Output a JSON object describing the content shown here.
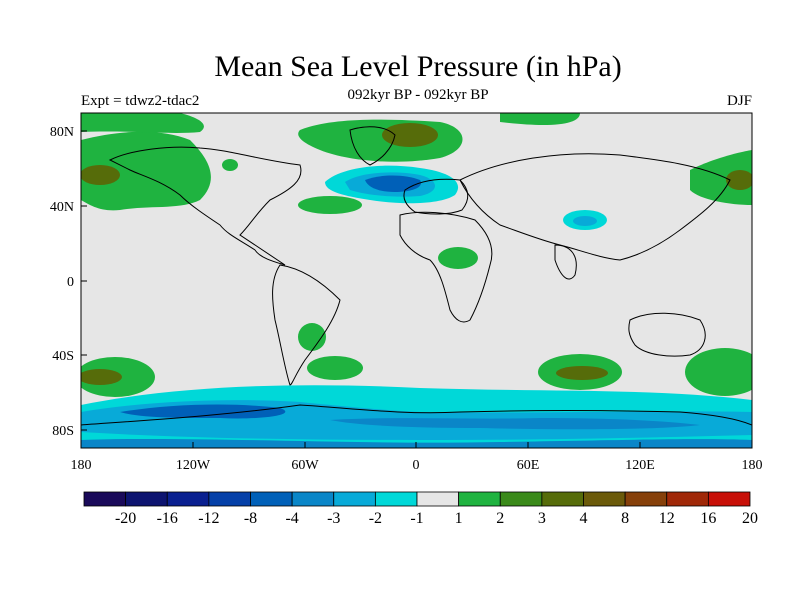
{
  "header": {
    "title": "Mean Sea Level Pressure (in hPa)",
    "subtitle": "092kyr BP - 092kyr BP",
    "left_label": "Expt = tdwz2-tdac2",
    "right_label": "DJF"
  },
  "axes": {
    "lat_ticks": [
      "80N",
      "40N",
      "0",
      "40S",
      "80S"
    ],
    "lon_ticks": [
      "180",
      "120W",
      "60W",
      "0",
      "60E",
      "120E",
      "180"
    ]
  },
  "colorbar": {
    "colors": [
      "#1a0a5a",
      "#0d1470",
      "#0a2090",
      "#0540a8",
      "#0060b8",
      "#0a86c8",
      "#08aad8",
      "#00d8d8",
      "#e6e6e6",
      "#1fb340",
      "#3a8a1a",
      "#566c0a",
      "#6b5a0a",
      "#86400a",
      "#a02808",
      "#c81008"
    ],
    "labels": [
      "-20",
      "-16",
      "-12",
      "-8",
      "-4",
      "-3",
      "-2",
      "-1",
      "1",
      "2",
      "3",
      "4",
      "8",
      "12",
      "16",
      "20"
    ]
  }
}
